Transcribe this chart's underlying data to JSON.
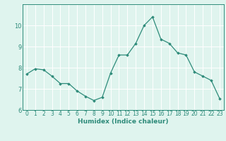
{
  "x": [
    0,
    1,
    2,
    3,
    4,
    5,
    6,
    7,
    8,
    9,
    10,
    11,
    12,
    13,
    14,
    15,
    16,
    17,
    18,
    19,
    20,
    21,
    22,
    23
  ],
  "y": [
    7.7,
    7.95,
    7.9,
    7.6,
    7.25,
    7.25,
    6.9,
    6.65,
    6.45,
    6.6,
    7.75,
    8.6,
    8.6,
    9.15,
    10.0,
    10.4,
    9.35,
    9.15,
    8.7,
    8.6,
    7.8,
    7.6,
    7.4,
    6.55
  ],
  "xlabel": "Humidex (Indice chaleur)",
  "ylim": [
    6,
    11
  ],
  "xlim": [
    -0.5,
    23.5
  ],
  "yticks": [
    6,
    7,
    8,
    9,
    10
  ],
  "xticks": [
    0,
    1,
    2,
    3,
    4,
    5,
    6,
    7,
    8,
    9,
    10,
    11,
    12,
    13,
    14,
    15,
    16,
    17,
    18,
    19,
    20,
    21,
    22,
    23
  ],
  "line_color": "#2e8b7a",
  "marker": "D",
  "marker_size": 1.8,
  "bg_color": "#dff4ee",
  "grid_color": "#ffffff",
  "spine_color": "#2e8b7a",
  "tick_color": "#2e8b7a",
  "label_color": "#2e8b7a",
  "xlabel_fontsize": 6.5,
  "tick_fontsize": 5.5,
  "ytick_fontsize": 6.0,
  "linewidth": 0.9
}
